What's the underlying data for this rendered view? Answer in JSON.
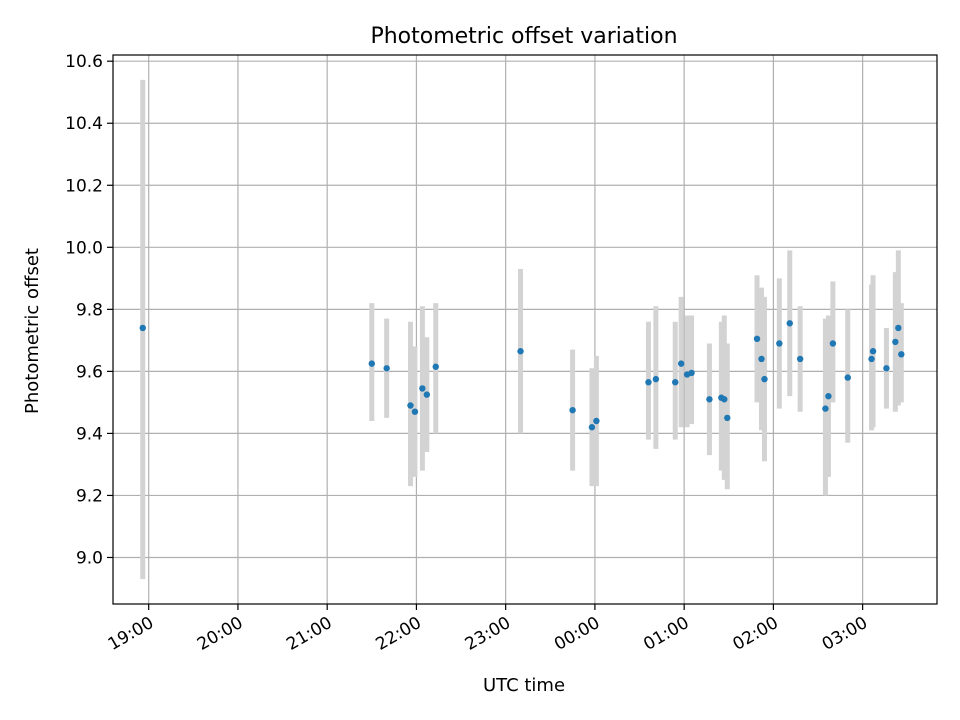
{
  "chart_data": {
    "type": "scatter",
    "title": "Photometric offset variation",
    "xlabel": "UTC time",
    "ylabel": "Photometric offset",
    "grid": true,
    "legend": "none",
    "xlim": [
      "18:36",
      "27:50"
    ],
    "ylim": [
      8.85,
      10.62
    ],
    "x_tick_labels": [
      "19:00",
      "20:00",
      "21:00",
      "22:00",
      "23:00",
      "00:00",
      "01:00",
      "02:00",
      "03:00"
    ],
    "x_tick_values": [
      "19:00",
      "20:00",
      "21:00",
      "22:00",
      "23:00",
      "24:00",
      "25:00",
      "26:00",
      "27:00"
    ],
    "y_tick_labels": [
      "9.0",
      "9.2",
      "9.4",
      "9.6",
      "9.8",
      "10.0",
      "10.2",
      "10.4",
      "10.6"
    ],
    "y_tick_values": [
      9.0,
      9.2,
      9.4,
      9.6,
      9.8,
      10.0,
      10.2,
      10.4,
      10.6
    ],
    "colors": {
      "point": "#1f77b4",
      "errorbar": "#d3d3d3",
      "grid": "#b0b0b0"
    },
    "points": [
      {
        "time": "18:56",
        "y": 9.74,
        "lo": 8.93,
        "hi": 10.54
      },
      {
        "time": "21:30",
        "y": 9.625,
        "lo": 9.44,
        "hi": 9.82
      },
      {
        "time": "21:40",
        "y": 9.61,
        "lo": 9.45,
        "hi": 9.77
      },
      {
        "time": "21:56",
        "y": 9.49,
        "lo": 9.23,
        "hi": 9.76
      },
      {
        "time": "21:59",
        "y": 9.47,
        "lo": 9.26,
        "hi": 9.68
      },
      {
        "time": "22:04",
        "y": 9.545,
        "lo": 9.28,
        "hi": 9.81
      },
      {
        "time": "22:07",
        "y": 9.525,
        "lo": 9.34,
        "hi": 9.71
      },
      {
        "time": "22:13",
        "y": 9.615,
        "lo": 9.4,
        "hi": 9.82
      },
      {
        "time": "23:10",
        "y": 9.665,
        "lo": 9.4,
        "hi": 9.93
      },
      {
        "time": "23:45",
        "y": 9.475,
        "lo": 9.28,
        "hi": 9.67
      },
      {
        "time": "23:58",
        "y": 9.42,
        "lo": 9.23,
        "hi": 9.61
      },
      {
        "time": "24:01",
        "y": 9.44,
        "lo": 9.23,
        "hi": 9.65
      },
      {
        "time": "24:36",
        "y": 9.565,
        "lo": 9.38,
        "hi": 9.76
      },
      {
        "time": "24:41",
        "y": 9.575,
        "lo": 9.35,
        "hi": 9.81
      },
      {
        "time": "24:54",
        "y": 9.565,
        "lo": 9.38,
        "hi": 9.76
      },
      {
        "time": "24:58",
        "y": 9.625,
        "lo": 9.42,
        "hi": 9.84
      },
      {
        "time": "25:02",
        "y": 9.59,
        "lo": 9.42,
        "hi": 9.78
      },
      {
        "time": "25:05",
        "y": 9.595,
        "lo": 9.43,
        "hi": 9.78
      },
      {
        "time": "25:17",
        "y": 9.51,
        "lo": 9.33,
        "hi": 9.69
      },
      {
        "time": "25:25",
        "y": 9.515,
        "lo": 9.28,
        "hi": 9.76
      },
      {
        "time": "25:27",
        "y": 9.51,
        "lo": 9.25,
        "hi": 9.78
      },
      {
        "time": "25:29",
        "y": 9.45,
        "lo": 9.22,
        "hi": 9.69
      },
      {
        "time": "25:49",
        "y": 9.705,
        "lo": 9.5,
        "hi": 9.91
      },
      {
        "time": "25:52",
        "y": 9.64,
        "lo": 9.41,
        "hi": 9.87
      },
      {
        "time": "25:54",
        "y": 9.575,
        "lo": 9.31,
        "hi": 9.84
      },
      {
        "time": "26:04",
        "y": 9.69,
        "lo": 9.48,
        "hi": 9.9
      },
      {
        "time": "26:11",
        "y": 9.755,
        "lo": 9.52,
        "hi": 9.99
      },
      {
        "time": "26:18",
        "y": 9.64,
        "lo": 9.47,
        "hi": 9.81
      },
      {
        "time": "26:35",
        "y": 9.48,
        "lo": 9.2,
        "hi": 9.77
      },
      {
        "time": "26:37",
        "y": 9.52,
        "lo": 9.26,
        "hi": 9.78
      },
      {
        "time": "26:40",
        "y": 9.69,
        "lo": 9.5,
        "hi": 9.89
      },
      {
        "time": "26:50",
        "y": 9.58,
        "lo": 9.37,
        "hi": 9.8
      },
      {
        "time": "27:06",
        "y": 9.64,
        "lo": 9.41,
        "hi": 9.88
      },
      {
        "time": "27:07",
        "y": 9.665,
        "lo": 9.42,
        "hi": 9.91
      },
      {
        "time": "27:16",
        "y": 9.61,
        "lo": 9.48,
        "hi": 9.74
      },
      {
        "time": "27:22",
        "y": 9.695,
        "lo": 9.47,
        "hi": 9.92
      },
      {
        "time": "27:24",
        "y": 9.74,
        "lo": 9.49,
        "hi": 9.99
      },
      {
        "time": "27:26",
        "y": 9.655,
        "lo": 9.5,
        "hi": 9.82
      }
    ]
  }
}
